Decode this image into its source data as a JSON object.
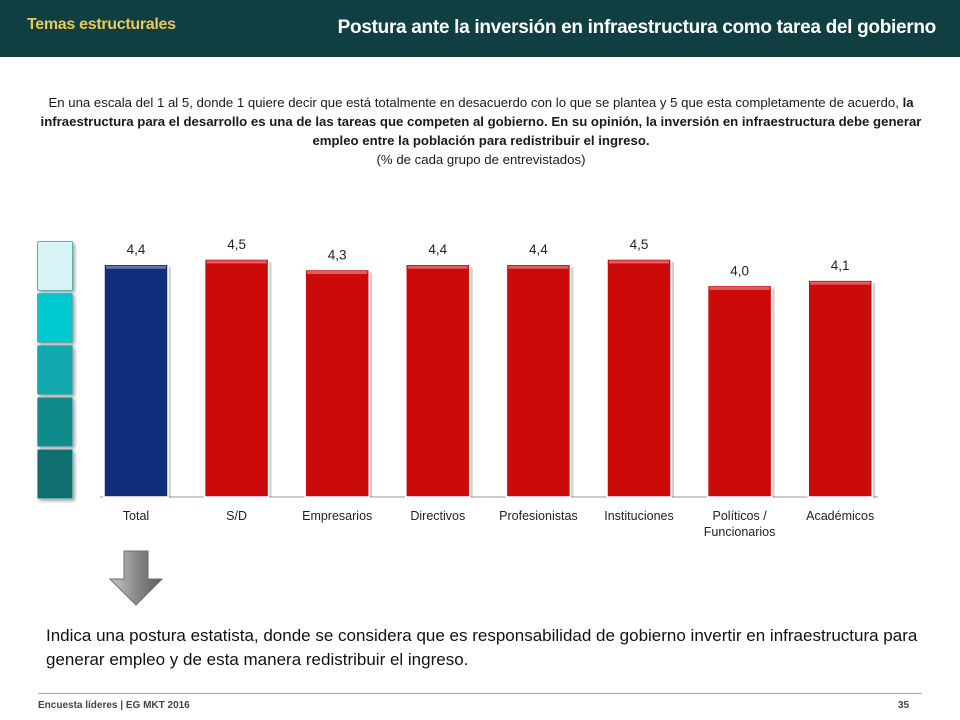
{
  "header": {
    "section_tag": "Temas estructurales",
    "title": "Postura ante la inversión en infraestructura como tarea del gobierno"
  },
  "question": {
    "intro": "En una escala del 1 al 5, donde 1 quiere decir que está totalmente en desacuerdo con lo que se plantea y 5 que esta completamente de acuerdo,",
    "statement": "la infraestructura para el desarrollo es una de las tareas que competen al gobierno. En su opinión, la inversión en infraestructura debe generar empleo entre la población para redistribuir el ingreso.",
    "note": "(% de cada grupo de entrevistados)"
  },
  "legend_colors": [
    "#d6f3f5",
    "#00c8d0",
    "#12a9ae",
    "#118a8c",
    "#0f6e70"
  ],
  "chart_data": {
    "type": "bar",
    "categories": [
      "Total",
      "S/D",
      "Empresarios",
      "Directivos",
      "Profesionistas",
      "Instituciones",
      "Políticos / Funcionarios",
      "Académicos"
    ],
    "category_lines": [
      [
        "Total"
      ],
      [
        "S/D"
      ],
      [
        "Empresarios"
      ],
      [
        "Directivos"
      ],
      [
        "Profesionistas"
      ],
      [
        "Instituciones"
      ],
      [
        "Políticos /",
        "Funcionarios"
      ],
      [
        "Académicos"
      ]
    ],
    "values": [
      4.4,
      4.5,
      4.3,
      4.4,
      4.4,
      4.5,
      4.0,
      4.1
    ],
    "value_labels": [
      "4,4",
      "4,5",
      "4,3",
      "4,4",
      "4,4",
      "4,5",
      "4,0",
      "4,1"
    ],
    "colors": [
      "#0f2d7a",
      "#cc0a0a",
      "#cc0a0a",
      "#cc0a0a",
      "#cc0a0a",
      "#cc0a0a",
      "#cc0a0a",
      "#cc0a0a"
    ],
    "grid": false
  },
  "conclusion": "Indica una postura estatista, donde se considera que es responsabilidad de gobierno invertir en infraestructura para generar empleo y de esta manera redistribuir el ingreso.",
  "footer": {
    "source": "Encuesta líderes | EG MKT 2016",
    "page": "35"
  }
}
